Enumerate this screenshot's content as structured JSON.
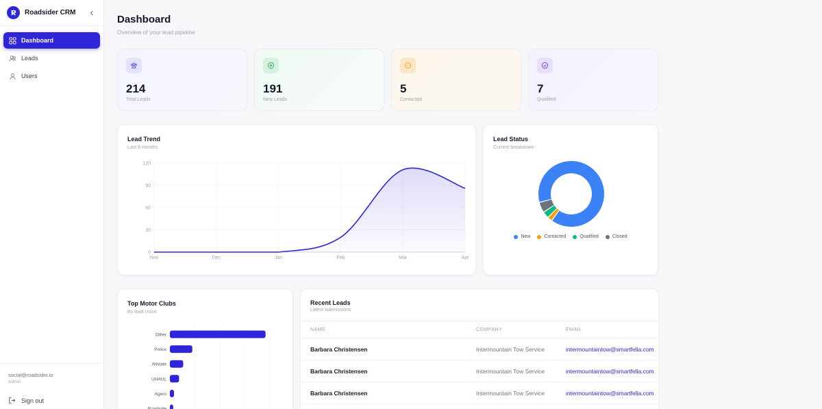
{
  "app": {
    "name": "Roadsider CRM"
  },
  "nav": {
    "items": [
      {
        "label": "Dashboard",
        "icon": "grid-icon",
        "active": true
      },
      {
        "label": "Leads",
        "icon": "users-icon",
        "active": false
      },
      {
        "label": "Users",
        "icon": "user-icon",
        "active": false
      }
    ]
  },
  "user": {
    "email": "social@roadsider.io",
    "role": "Admin",
    "signout_label": "Sign out"
  },
  "header": {
    "title": "Dashboard",
    "subtitle": "Overview of your lead pipeline"
  },
  "stats": [
    {
      "value": "214",
      "label": "Total Leads",
      "icon": "users-group-icon",
      "color": "#4f46e5"
    },
    {
      "value": "191",
      "label": "New Leads",
      "icon": "plus-circle-icon",
      "color": "#16a34a"
    },
    {
      "value": "5",
      "label": "Contacted",
      "icon": "chat-bubble-icon",
      "color": "#f59e0b"
    },
    {
      "value": "7",
      "label": "Qualified",
      "icon": "check-circle-icon",
      "color": "#6d28d9"
    }
  ],
  "lead_trend": {
    "title": "Lead Trend",
    "subtitle": "Last 6 months"
  },
  "lead_status": {
    "title": "Lead Status",
    "subtitle": "Current breakdown"
  },
  "motor_clubs": {
    "title": "Top Motor Clubs",
    "subtitle": "By lead count"
  },
  "recent_leads": {
    "title": "Recent Leads",
    "subtitle": "Latest submissions",
    "columns": [
      "NAME",
      "COMPANY",
      "EMAIL"
    ],
    "rows": [
      {
        "name": "Barbara Christensen",
        "company": "Intermountain Tow Service",
        "email": "intermountaintow@smartfella.com"
      },
      {
        "name": "Barbara Christensen",
        "company": "Intermountain Tow Service",
        "email": "intermountaintow@smartfella.com"
      },
      {
        "name": "Barbara Christensen",
        "company": "Intermountain Tow Service",
        "email": "intermountaintow@smartfella.com"
      }
    ]
  },
  "chart_data": [
    {
      "type": "area",
      "title": "Lead Trend",
      "subtitle": "Last 6 months",
      "categories": [
        "Nov",
        "Dec",
        "Jan",
        "Feb",
        "Mar",
        "Apr"
      ],
      "values": [
        0,
        0,
        0,
        20,
        111,
        86
      ],
      "ylim": [
        0,
        120
      ],
      "yticks": [
        0,
        30,
        60,
        90,
        120
      ],
      "grid": true,
      "color": "#2f26d9"
    },
    {
      "type": "pie",
      "title": "Lead Status",
      "subtitle": "Current breakdown",
      "labels": [
        "New",
        "Contacted",
        "Qualified",
        "Closed"
      ],
      "values": [
        191,
        5,
        7,
        11
      ],
      "colors": [
        "#3b82f6",
        "#f59e0b",
        "#10b981",
        "#6b7280"
      ],
      "legend": "bottom"
    },
    {
      "type": "bar",
      "orientation": "horizontal",
      "title": "Top Motor Clubs",
      "subtitle": "By lead count",
      "categories": [
        "Other",
        "Police",
        "Allstate",
        "UHAUL",
        "Agero",
        "Roadside"
      ],
      "values": [
        115,
        27,
        16,
        11,
        5,
        4
      ],
      "grid": true,
      "color": "#2f26d9"
    }
  ]
}
